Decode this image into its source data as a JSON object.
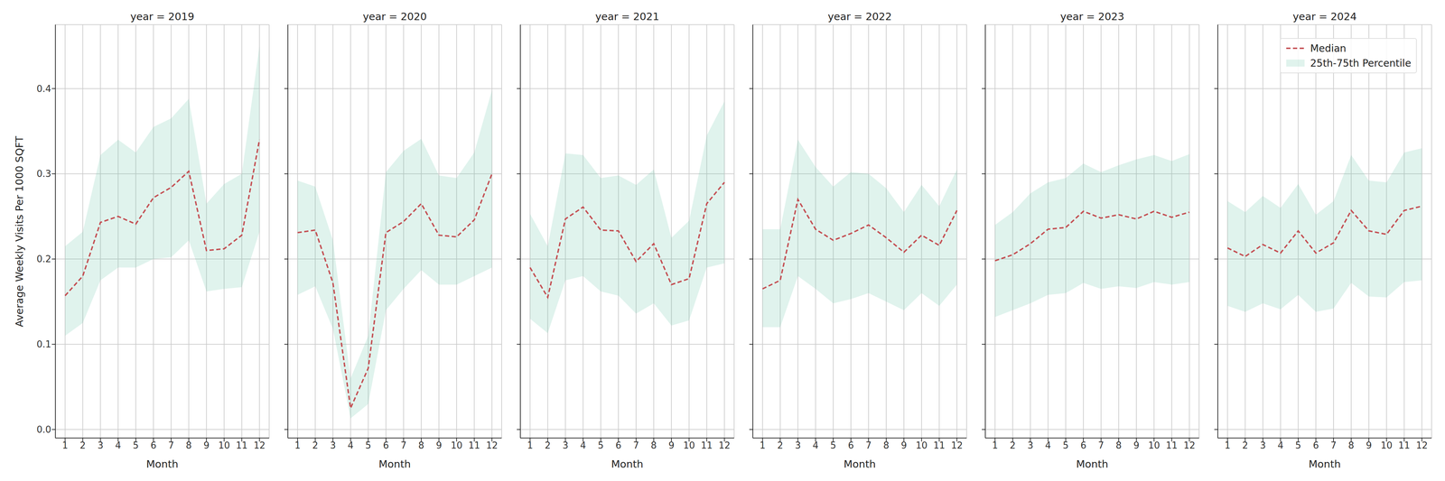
{
  "chart_data": [
    {
      "type": "line",
      "title": "year = 2019",
      "x_label": "Month",
      "y_label": "Average Weekly Visits Per 1000 SQFT",
      "x": [
        1,
        2,
        3,
        4,
        5,
        6,
        7,
        8,
        9,
        10,
        11,
        12
      ],
      "xlim": [
        0.45,
        12.55
      ],
      "xticks": [
        1,
        2,
        3,
        4,
        5,
        6,
        7,
        8,
        9,
        10,
        11,
        12
      ],
      "ylim": [
        -0.01,
        0.475
      ],
      "yticks": [
        {
          "value": 0,
          "label": "0.0"
        },
        0.1,
        0.2,
        0.3,
        0.4
      ],
      "grid": true,
      "series": [
        {
          "name": "Median",
          "type": "line",
          "color": "#c44e52",
          "line_style": "dashed",
          "values": [
            0.157,
            0.18,
            0.243,
            0.25,
            0.241,
            0.272,
            0.284,
            0.303,
            0.21,
            0.212,
            0.228,
            0.34
          ]
        },
        {
          "name": "25th-75th Percentile",
          "type": "area",
          "color": "#66c2a5",
          "low": [
            0.11,
            0.125,
            0.175,
            0.19,
            0.19,
            0.2,
            0.202,
            0.222,
            0.162,
            0.165,
            0.167,
            0.232
          ],
          "high": [
            0.215,
            0.232,
            0.322,
            0.34,
            0.325,
            0.355,
            0.365,
            0.388,
            0.265,
            0.288,
            0.3,
            0.45
          ]
        }
      ]
    },
    {
      "type": "line",
      "title": "year = 2020",
      "x_label": "Month",
      "tick_labels": "x",
      "x": [
        1,
        2,
        3,
        4,
        5,
        6,
        7,
        8,
        9,
        10,
        11,
        12
      ],
      "xlim": [
        0.45,
        12.55
      ],
      "xticks": [
        1,
        2,
        3,
        4,
        5,
        6,
        7,
        8,
        9,
        10,
        11,
        12
      ],
      "ylim": [
        -0.01,
        0.475
      ],
      "yticks": [
        0,
        0.1,
        0.2,
        0.3,
        0.4
      ],
      "grid": true,
      "series": [
        {
          "name": "Median",
          "type": "line",
          "color": "#c44e52",
          "line_style": "dashed",
          "values": [
            0.231,
            0.234,
            0.172,
            0.025,
            0.072,
            0.231,
            0.244,
            0.265,
            0.228,
            0.226,
            0.246,
            0.3
          ]
        },
        {
          "name": "25th-75th Percentile",
          "type": "area",
          "color": "#66c2a5",
          "low": [
            0.158,
            0.168,
            0.118,
            0.013,
            0.03,
            0.14,
            0.165,
            0.187,
            0.17,
            0.17,
            0.18,
            0.19
          ],
          "high": [
            0.292,
            0.285,
            0.222,
            0.06,
            0.11,
            0.302,
            0.327,
            0.341,
            0.298,
            0.295,
            0.325,
            0.398
          ]
        }
      ]
    },
    {
      "type": "line",
      "title": "year = 2021",
      "x_label": "Month",
      "tick_labels": "x",
      "x": [
        1,
        2,
        3,
        4,
        5,
        6,
        7,
        8,
        9,
        10,
        11,
        12
      ],
      "xlim": [
        0.45,
        12.55
      ],
      "xticks": [
        1,
        2,
        3,
        4,
        5,
        6,
        7,
        8,
        9,
        10,
        11,
        12
      ],
      "ylim": [
        -0.01,
        0.475
      ],
      "yticks": [
        0,
        0.1,
        0.2,
        0.3,
        0.4
      ],
      "grid": true,
      "series": [
        {
          "name": "Median",
          "type": "line",
          "color": "#c44e52",
          "line_style": "dashed",
          "values": [
            0.19,
            0.155,
            0.247,
            0.261,
            0.234,
            0.233,
            0.197,
            0.218,
            0.17,
            0.177,
            0.265,
            0.29
          ]
        },
        {
          "name": "25th-75th Percentile",
          "type": "area",
          "color": "#66c2a5",
          "low": [
            0.13,
            0.113,
            0.175,
            0.18,
            0.162,
            0.157,
            0.136,
            0.148,
            0.122,
            0.128,
            0.19,
            0.195
          ],
          "high": [
            0.253,
            0.215,
            0.324,
            0.322,
            0.295,
            0.298,
            0.287,
            0.305,
            0.225,
            0.245,
            0.345,
            0.385
          ]
        }
      ]
    },
    {
      "type": "line",
      "title": "year = 2022",
      "x_label": "Month",
      "tick_labels": "x",
      "x": [
        1,
        2,
        3,
        4,
        5,
        6,
        7,
        8,
        9,
        10,
        11,
        12
      ],
      "xlim": [
        0.45,
        12.55
      ],
      "xticks": [
        1,
        2,
        3,
        4,
        5,
        6,
        7,
        8,
        9,
        10,
        11,
        12
      ],
      "ylim": [
        -0.01,
        0.475
      ],
      "yticks": [
        0,
        0.1,
        0.2,
        0.3,
        0.4
      ],
      "grid": true,
      "series": [
        {
          "name": "Median",
          "type": "line",
          "color": "#c44e52",
          "line_style": "dashed",
          "values": [
            0.165,
            0.175,
            0.27,
            0.235,
            0.222,
            0.23,
            0.24,
            0.225,
            0.208,
            0.228,
            0.216,
            0.257
          ]
        },
        {
          "name": "25th-75th Percentile",
          "type": "area",
          "color": "#66c2a5",
          "low": [
            0.12,
            0.12,
            0.18,
            0.165,
            0.148,
            0.153,
            0.16,
            0.15,
            0.14,
            0.16,
            0.145,
            0.17
          ],
          "high": [
            0.235,
            0.235,
            0.34,
            0.308,
            0.285,
            0.302,
            0.3,
            0.283,
            0.255,
            0.287,
            0.262,
            0.305
          ]
        }
      ]
    },
    {
      "type": "line",
      "title": "year = 2023",
      "x_label": "Month",
      "tick_labels": "x",
      "x": [
        1,
        2,
        3,
        4,
        5,
        6,
        7,
        8,
        9,
        10,
        11,
        12
      ],
      "xlim": [
        0.45,
        12.55
      ],
      "xticks": [
        1,
        2,
        3,
        4,
        5,
        6,
        7,
        8,
        9,
        10,
        11,
        12
      ],
      "ylim": [
        -0.01,
        0.475
      ],
      "yticks": [
        0,
        0.1,
        0.2,
        0.3,
        0.4
      ],
      "grid": true,
      "series": [
        {
          "name": "Median",
          "type": "line",
          "color": "#c44e52",
          "line_style": "dashed",
          "values": [
            0.198,
            0.205,
            0.218,
            0.235,
            0.237,
            0.256,
            0.248,
            0.252,
            0.247,
            0.256,
            0.249,
            0.255
          ]
        },
        {
          "name": "25th-75th Percentile",
          "type": "area",
          "color": "#66c2a5",
          "low": [
            0.132,
            0.14,
            0.148,
            0.158,
            0.16,
            0.172,
            0.165,
            0.168,
            0.166,
            0.173,
            0.17,
            0.173
          ],
          "high": [
            0.24,
            0.255,
            0.277,
            0.29,
            0.295,
            0.312,
            0.302,
            0.31,
            0.317,
            0.322,
            0.315,
            0.323
          ]
        }
      ]
    },
    {
      "type": "line",
      "title": "year = 2024",
      "x_label": "Month",
      "tick_labels": "x",
      "legend": "upper right",
      "x": [
        1,
        2,
        3,
        4,
        5,
        6,
        7,
        8,
        9,
        10,
        11,
        12
      ],
      "xlim": [
        0.45,
        12.55
      ],
      "xticks": [
        1,
        2,
        3,
        4,
        5,
        6,
        7,
        8,
        9,
        10,
        11,
        12
      ],
      "ylim": [
        -0.01,
        0.475
      ],
      "yticks": [
        0,
        0.1,
        0.2,
        0.3,
        0.4
      ],
      "grid": true,
      "series": [
        {
          "name": "Median",
          "type": "line",
          "color": "#c44e52",
          "line_style": "dashed",
          "values": [
            0.213,
            0.203,
            0.217,
            0.207,
            0.233,
            0.207,
            0.219,
            0.257,
            0.233,
            0.229,
            0.257,
            0.262
          ]
        },
        {
          "name": "25th-75th Percentile",
          "type": "area",
          "color": "#66c2a5",
          "low": [
            0.145,
            0.138,
            0.148,
            0.141,
            0.158,
            0.138,
            0.142,
            0.172,
            0.156,
            0.155,
            0.173,
            0.175
          ],
          "high": [
            0.268,
            0.255,
            0.274,
            0.26,
            0.288,
            0.252,
            0.268,
            0.322,
            0.292,
            0.29,
            0.325,
            0.33
          ]
        }
      ]
    }
  ]
}
